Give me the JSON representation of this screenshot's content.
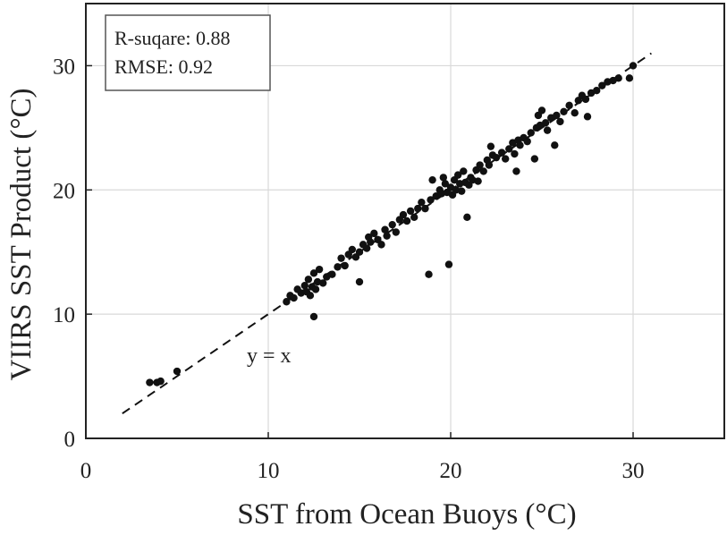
{
  "chart_data": {
    "type": "scatter",
    "title": "",
    "xlabel": "SST from Ocean Buoys (°C)",
    "ylabel": "VIIRS SST Product (°C)",
    "xlim": [
      0,
      35
    ],
    "ylim": [
      0,
      35
    ],
    "xticks": [
      0,
      10,
      20,
      30
    ],
    "yticks": [
      0,
      10,
      20,
      30
    ],
    "grid": true,
    "stats": {
      "r_squared": "R-suqare: 0.88",
      "rmse": "RMSE: 0.92"
    },
    "reference_line": {
      "label": "y = x",
      "from": [
        2,
        2
      ],
      "to": [
        31,
        31
      ],
      "style": "dashed"
    },
    "series": [
      {
        "points": [
          [
            3.5,
            4.5
          ],
          [
            3.9,
            4.5
          ],
          [
            4.1,
            4.6
          ],
          [
            5.0,
            5.4
          ],
          [
            11.0,
            11.0
          ],
          [
            11.2,
            11.5
          ],
          [
            11.4,
            11.3
          ],
          [
            11.6,
            12.0
          ],
          [
            11.8,
            11.7
          ],
          [
            12.0,
            12.3
          ],
          [
            12.1,
            11.8
          ],
          [
            12.2,
            12.8
          ],
          [
            12.3,
            11.5
          ],
          [
            12.4,
            12.2
          ],
          [
            12.5,
            9.8
          ],
          [
            12.5,
            13.3
          ],
          [
            12.6,
            12.0
          ],
          [
            12.7,
            12.6
          ],
          [
            12.8,
            13.6
          ],
          [
            13.0,
            12.5
          ],
          [
            13.2,
            13.0
          ],
          [
            13.5,
            13.2
          ],
          [
            13.8,
            13.8
          ],
          [
            14.0,
            14.5
          ],
          [
            14.2,
            13.9
          ],
          [
            14.4,
            14.8
          ],
          [
            14.6,
            15.2
          ],
          [
            14.8,
            14.6
          ],
          [
            15.0,
            15.0
          ],
          [
            15.0,
            12.6
          ],
          [
            15.2,
            15.6
          ],
          [
            15.4,
            15.3
          ],
          [
            15.5,
            16.2
          ],
          [
            15.6,
            15.8
          ],
          [
            15.8,
            16.5
          ],
          [
            16.0,
            16.0
          ],
          [
            16.2,
            15.6
          ],
          [
            16.4,
            16.8
          ],
          [
            16.5,
            16.3
          ],
          [
            16.8,
            17.2
          ],
          [
            17.0,
            16.6
          ],
          [
            17.2,
            17.6
          ],
          [
            17.4,
            18.0
          ],
          [
            17.6,
            17.5
          ],
          [
            17.8,
            18.3
          ],
          [
            18.0,
            17.8
          ],
          [
            18.2,
            18.5
          ],
          [
            18.4,
            19.0
          ],
          [
            18.6,
            18.5
          ],
          [
            18.8,
            13.2
          ],
          [
            18.9,
            19.2
          ],
          [
            19.0,
            20.8
          ],
          [
            19.2,
            19.5
          ],
          [
            19.4,
            20.0
          ],
          [
            19.5,
            19.7
          ],
          [
            19.6,
            21.0
          ],
          [
            19.7,
            20.5
          ],
          [
            19.8,
            19.8
          ],
          [
            19.9,
            14.0
          ],
          [
            20.0,
            20.2
          ],
          [
            20.1,
            19.6
          ],
          [
            20.2,
            20.8
          ],
          [
            20.3,
            20.0
          ],
          [
            20.4,
            21.2
          ],
          [
            20.5,
            20.5
          ],
          [
            20.6,
            19.9
          ],
          [
            20.7,
            21.5
          ],
          [
            20.8,
            20.6
          ],
          [
            20.9,
            17.8
          ],
          [
            21.0,
            20.4
          ],
          [
            21.1,
            21.0
          ],
          [
            21.2,
            20.8
          ],
          [
            21.4,
            21.6
          ],
          [
            21.5,
            20.7
          ],
          [
            21.6,
            22.0
          ],
          [
            21.8,
            21.5
          ],
          [
            22.0,
            22.4
          ],
          [
            22.1,
            22.0
          ],
          [
            22.2,
            23.5
          ],
          [
            22.3,
            22.8
          ],
          [
            22.5,
            22.6
          ],
          [
            22.8,
            23.0
          ],
          [
            23.0,
            22.5
          ],
          [
            23.2,
            23.3
          ],
          [
            23.4,
            23.8
          ],
          [
            23.5,
            22.9
          ],
          [
            23.6,
            21.5
          ],
          [
            23.7,
            24.0
          ],
          [
            23.8,
            23.6
          ],
          [
            24.0,
            24.2
          ],
          [
            24.2,
            23.9
          ],
          [
            24.4,
            24.6
          ],
          [
            24.6,
            22.5
          ],
          [
            24.7,
            25.0
          ],
          [
            24.8,
            26.0
          ],
          [
            24.9,
            25.2
          ],
          [
            25.0,
            26.4
          ],
          [
            25.2,
            25.4
          ],
          [
            25.3,
            24.8
          ],
          [
            25.5,
            25.8
          ],
          [
            25.7,
            23.6
          ],
          [
            25.8,
            26.0
          ],
          [
            26.0,
            25.5
          ],
          [
            26.2,
            26.3
          ],
          [
            26.5,
            26.8
          ],
          [
            26.8,
            26.2
          ],
          [
            27.0,
            27.2
          ],
          [
            27.2,
            27.6
          ],
          [
            27.4,
            27.3
          ],
          [
            27.5,
            25.9
          ],
          [
            27.7,
            27.8
          ],
          [
            28.0,
            28.0
          ],
          [
            28.3,
            28.4
          ],
          [
            28.6,
            28.7
          ],
          [
            28.9,
            28.8
          ],
          [
            29.2,
            29.0
          ],
          [
            29.8,
            29.0
          ],
          [
            30.0,
            30.0
          ]
        ]
      }
    ]
  }
}
